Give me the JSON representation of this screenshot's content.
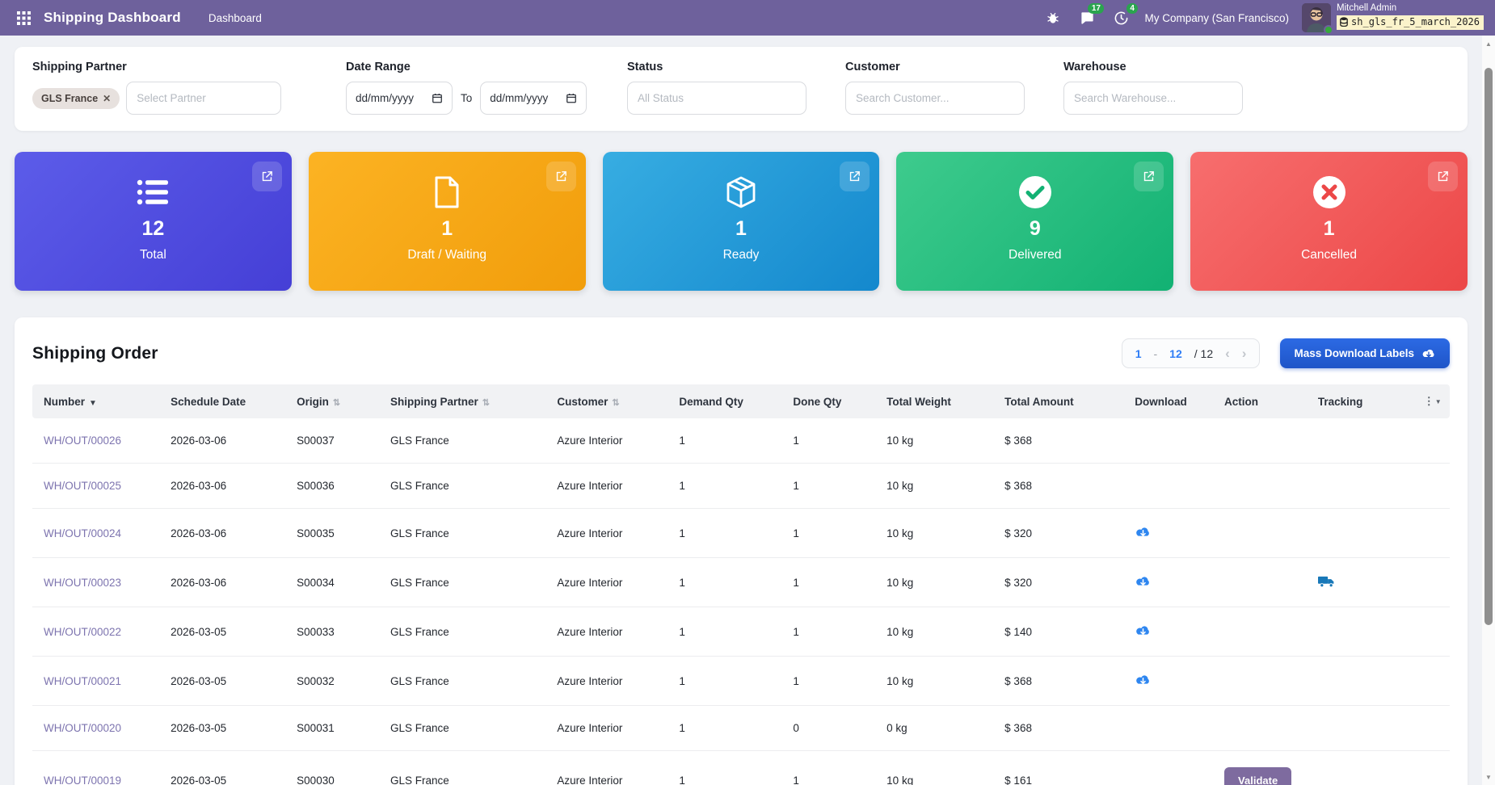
{
  "navbar": {
    "app_title": "Shipping Dashboard",
    "menu_dashboard": "Dashboard",
    "message_count": "17",
    "activity_count": "4",
    "company": "My Company (San Francisco)",
    "user_name": "Mitchell Admin",
    "database": "sh_gls_fr_5_march_2026"
  },
  "filters": {
    "shipping_partner": {
      "label": "Shipping Partner",
      "tag": "GLS France",
      "placeholder": "Select Partner"
    },
    "date_range": {
      "label": "Date Range",
      "from_value": "dd/mm/yyyy",
      "to_label": "To",
      "to_value": "dd/mm/yyyy"
    },
    "status": {
      "label": "Status",
      "placeholder": "All Status"
    },
    "customer": {
      "label": "Customer",
      "placeholder": "Search Customer..."
    },
    "warehouse": {
      "label": "Warehouse",
      "placeholder": "Search Warehouse..."
    }
  },
  "stat_cards": [
    {
      "id": "total",
      "icon": "list-icon",
      "count": "12",
      "label": "Total",
      "color_from": "#5c5ce9",
      "color_to": "#453fd6"
    },
    {
      "id": "draft-waiting",
      "icon": "file-icon",
      "count": "1",
      "label": "Draft / Waiting",
      "color_from": "#fcb323",
      "color_to": "#f19d0b"
    },
    {
      "id": "ready",
      "icon": "package-icon",
      "count": "1",
      "label": "Ready",
      "color_from": "#37ade2",
      "color_to": "#1488cd"
    },
    {
      "id": "delivered",
      "icon": "check-circle-icon",
      "count": "9",
      "label": "Delivered",
      "color_from": "#3ecb8d",
      "color_to": "#12b173"
    },
    {
      "id": "cancelled",
      "icon": "x-circle-icon",
      "count": "1",
      "label": "Cancelled",
      "color_from": "#f76e6e",
      "color_to": "#ec4747"
    }
  ],
  "orders": {
    "title": "Shipping Order",
    "pagination": {
      "start": "1",
      "dash": "-",
      "end": "12",
      "total": "/ 12",
      "prev": "‹",
      "next": "›"
    },
    "mass_download_label": "Mass Download Labels",
    "columns": [
      {
        "key": "number",
        "label": "Number",
        "sort": "desc"
      },
      {
        "key": "schedule_date",
        "label": "Schedule Date",
        "sort": "none"
      },
      {
        "key": "origin",
        "label": "Origin",
        "sort": "both"
      },
      {
        "key": "partner",
        "label": "Shipping Partner",
        "sort": "both"
      },
      {
        "key": "customer",
        "label": "Customer",
        "sort": "both"
      },
      {
        "key": "demand_qty",
        "label": "Demand Qty",
        "sort": "none"
      },
      {
        "key": "done_qty",
        "label": "Done Qty",
        "sort": "none"
      },
      {
        "key": "total_weight",
        "label": "Total Weight",
        "sort": "none"
      },
      {
        "key": "total_amount",
        "label": "Total Amount",
        "sort": "none"
      },
      {
        "key": "download",
        "label": "Download",
        "sort": "none"
      },
      {
        "key": "action",
        "label": "Action",
        "sort": "none"
      },
      {
        "key": "tracking",
        "label": "Tracking",
        "sort": "none"
      },
      {
        "key": "options",
        "label": "",
        "sort": "none"
      }
    ],
    "rows": [
      {
        "number": "WH/OUT/00026",
        "schedule_date": "2026-03-06",
        "origin": "S00037",
        "partner": "GLS France",
        "customer": "Azure Interior",
        "demand_qty": "1",
        "done_qty": "1",
        "total_weight": "10 kg",
        "total_amount": "$ 368",
        "download": false,
        "action": "",
        "tracking": false
      },
      {
        "number": "WH/OUT/00025",
        "schedule_date": "2026-03-06",
        "origin": "S00036",
        "partner": "GLS France",
        "customer": "Azure Interior",
        "demand_qty": "1",
        "done_qty": "1",
        "total_weight": "10 kg",
        "total_amount": "$ 368",
        "download": false,
        "action": "",
        "tracking": false
      },
      {
        "number": "WH/OUT/00024",
        "schedule_date": "2026-03-06",
        "origin": "S00035",
        "partner": "GLS France",
        "customer": "Azure Interior",
        "demand_qty": "1",
        "done_qty": "1",
        "total_weight": "10 kg",
        "total_amount": "$ 320",
        "download": true,
        "action": "",
        "tracking": false
      },
      {
        "number": "WH/OUT/00023",
        "schedule_date": "2026-03-06",
        "origin": "S00034",
        "partner": "GLS France",
        "customer": "Azure Interior",
        "demand_qty": "1",
        "done_qty": "1",
        "total_weight": "10 kg",
        "total_amount": "$ 320",
        "download": true,
        "action": "",
        "tracking": true
      },
      {
        "number": "WH/OUT/00022",
        "schedule_date": "2026-03-05",
        "origin": "S00033",
        "partner": "GLS France",
        "customer": "Azure Interior",
        "demand_qty": "1",
        "done_qty": "1",
        "total_weight": "10 kg",
        "total_amount": "$ 140",
        "download": true,
        "action": "",
        "tracking": false
      },
      {
        "number": "WH/OUT/00021",
        "schedule_date": "2026-03-05",
        "origin": "S00032",
        "partner": "GLS France",
        "customer": "Azure Interior",
        "demand_qty": "1",
        "done_qty": "1",
        "total_weight": "10 kg",
        "total_amount": "$ 368",
        "download": true,
        "action": "",
        "tracking": false
      },
      {
        "number": "WH/OUT/00020",
        "schedule_date": "2026-03-05",
        "origin": "S00031",
        "partner": "GLS France",
        "customer": "Azure Interior",
        "demand_qty": "1",
        "done_qty": "0",
        "total_weight": "0 kg",
        "total_amount": "$ 368",
        "download": false,
        "action": "",
        "tracking": false
      },
      {
        "number": "WH/OUT/00019",
        "schedule_date": "2026-03-05",
        "origin": "S00030",
        "partner": "GLS France",
        "customer": "Azure Interior",
        "demand_qty": "1",
        "done_qty": "1",
        "total_weight": "10 kg",
        "total_amount": "$ 161",
        "download": false,
        "action": "Validate",
        "tracking": false
      }
    ]
  },
  "colors": {
    "navbar_bg": "#6e619c",
    "badge_green": "#2aa44f",
    "db_box": "#fbf3cb",
    "accent_blue": "#2f7df6",
    "link_purple": "#7d74af",
    "validate_purple": "#7e6b9f",
    "download_blue": "#2e86f0",
    "truck_blue": "#1878b8"
  }
}
